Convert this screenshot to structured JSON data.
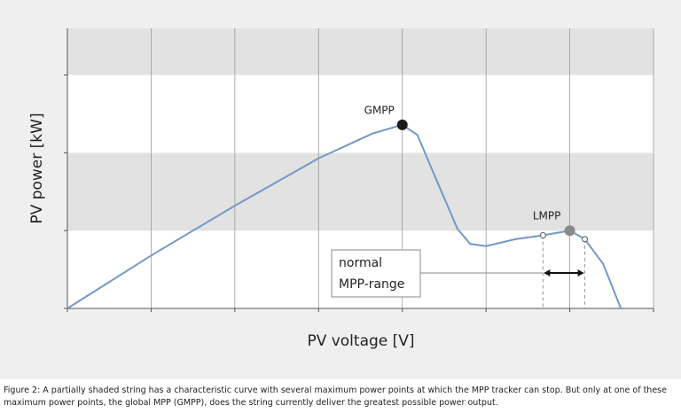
{
  "chart_data": {
    "type": "line",
    "x_label": "PV voltage [V]",
    "y_label": "PV power [kW]",
    "xlim": [
      0,
      7
    ],
    "xticks": [
      0,
      1,
      2,
      3,
      4,
      5,
      6,
      7
    ],
    "ylim": [
      0,
      3.6
    ],
    "yticks": [
      0,
      1,
      2,
      3
    ],
    "grid": true,
    "bands": true,
    "series": [
      {
        "color": "#7399c6",
        "x": [
          0,
          1,
          2,
          3,
          3.65,
          4,
          4.18,
          4.44,
          4.66,
          4.81,
          5,
          5.35,
          5.68,
          6,
          6.18,
          6.4,
          6.61
        ],
        "values": [
          0,
          0.68,
          1.32,
          1.93,
          2.25,
          2.36,
          2.23,
          1.57,
          1.02,
          0.83,
          0.8,
          0.89,
          0.94,
          1.0,
          0.89,
          0.57,
          0
        ]
      }
    ],
    "markers": [
      {
        "label": "GMPP",
        "x": 4,
        "y": 2.36,
        "color": "#1a1a1a"
      },
      {
        "label": "LMPP",
        "x": 6,
        "y": 1.0,
        "color": "#8a8a8a"
      }
    ],
    "range": {
      "label": [
        "normal",
        "MPP-range"
      ],
      "x": [
        5.68,
        6.18
      ],
      "y": [
        0.94,
        0.89
      ]
    },
    "caption": "Figure 2: A partially shaded string has a characteristic curve with several maximum power points at which the MPP tracker can stop. But only at one of these maximum power points, the global MPP (GMPP), does the string currently deliver the greatest possible power output."
  }
}
